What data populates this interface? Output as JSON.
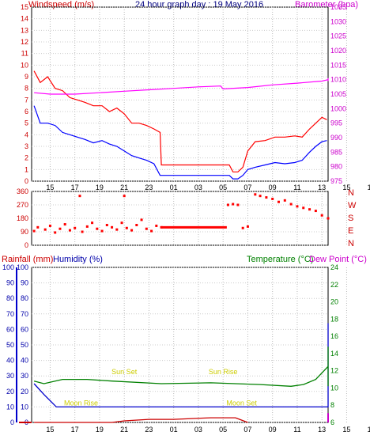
{
  "title": "24 hour graph day : 19 May 2016",
  "chart_data": [
    {
      "type": "line",
      "left_label": "Windspeed (m/s)",
      "right_label": "Barometer (hpa)",
      "ylim_left": [
        0,
        15
      ],
      "ylim_right": [
        975,
        1035
      ],
      "x_hours_from": 13.5,
      "x_hours_to": 37.5,
      "x_ticks": [
        "15",
        "17",
        "19",
        "21",
        "23",
        "01",
        "03",
        "05",
        "07",
        "09",
        "11",
        "13",
        "15",
        "17",
        "19",
        "21",
        "23"
      ],
      "y_ticks_left": [
        "15",
        "14",
        "13",
        "12",
        "11",
        "10",
        "9",
        "8",
        "7",
        "6",
        "5",
        "4",
        "3",
        "2",
        "1",
        "0"
      ],
      "y_ticks_right": [
        "1035",
        "1030",
        "1025",
        "1020",
        "1015",
        "1010",
        "1005",
        "1000",
        "995",
        "990",
        "985",
        "980",
        "975"
      ],
      "series": [
        {
          "name": "Windspeed",
          "color": "#ff0000",
          "points": [
            [
              13.7,
              9.5
            ],
            [
              14.2,
              8.5
            ],
            [
              14.8,
              9.0
            ],
            [
              15.4,
              8.0
            ],
            [
              16.0,
              7.8
            ],
            [
              16.6,
              7.2
            ],
            [
              17.2,
              7.0
            ],
            [
              17.8,
              6.8
            ],
            [
              18.5,
              6.5
            ],
            [
              19.2,
              6.5
            ],
            [
              19.8,
              6.0
            ],
            [
              20.4,
              6.3
            ],
            [
              21.0,
              5.8
            ],
            [
              21.6,
              5.0
            ],
            [
              22.2,
              5.0
            ],
            [
              22.8,
              4.8
            ],
            [
              23.4,
              4.5
            ],
            [
              23.9,
              4.2
            ],
            [
              24.0,
              1.4
            ],
            [
              26.0,
              1.4
            ],
            [
              27.0,
              1.4
            ],
            [
              28.8,
              1.4
            ],
            [
              29.5,
              1.4
            ],
            [
              29.8,
              0.8
            ],
            [
              30.2,
              0.8
            ],
            [
              30.6,
              1.2
            ],
            [
              31.0,
              2.6
            ],
            [
              31.6,
              3.4
            ],
            [
              32.4,
              3.5
            ],
            [
              33.2,
              3.8
            ],
            [
              34.0,
              3.8
            ],
            [
              34.8,
              3.9
            ],
            [
              35.4,
              3.8
            ],
            [
              36.0,
              4.5
            ],
            [
              36.5,
              5.0
            ],
            [
              37.0,
              5.5
            ],
            [
              37.4,
              5.3
            ]
          ]
        },
        {
          "name": "Gust",
          "color": "#0000ff",
          "points": [
            [
              13.7,
              6.5
            ],
            [
              14.2,
              5.0
            ],
            [
              14.8,
              5.0
            ],
            [
              15.4,
              4.8
            ],
            [
              16.0,
              4.2
            ],
            [
              16.6,
              4.0
            ],
            [
              17.2,
              3.8
            ],
            [
              17.8,
              3.6
            ],
            [
              18.5,
              3.3
            ],
            [
              19.2,
              3.5
            ],
            [
              19.8,
              3.2
            ],
            [
              20.4,
              3.0
            ],
            [
              21.0,
              2.6
            ],
            [
              21.6,
              2.2
            ],
            [
              22.2,
              2.0
            ],
            [
              22.8,
              1.8
            ],
            [
              23.4,
              1.5
            ],
            [
              23.9,
              0.5
            ],
            [
              24.0,
              0.5
            ],
            [
              29.5,
              0.5
            ],
            [
              29.8,
              0.2
            ],
            [
              30.2,
              0.2
            ],
            [
              30.6,
              0.5
            ],
            [
              31.0,
              1.0
            ],
            [
              31.6,
              1.2
            ],
            [
              32.4,
              1.4
            ],
            [
              33.2,
              1.6
            ],
            [
              34.0,
              1.5
            ],
            [
              34.8,
              1.6
            ],
            [
              35.4,
              1.8
            ],
            [
              36.0,
              2.5
            ],
            [
              36.5,
              3.0
            ],
            [
              37.0,
              3.4
            ],
            [
              37.4,
              3.5
            ]
          ]
        },
        {
          "name": "Barometer",
          "color": "#ff00ff",
          "points": [
            [
              13.7,
              1005.5
            ],
            [
              15.0,
              1005.0
            ],
            [
              17.0,
              1005.0
            ],
            [
              19.0,
              1005.5
            ],
            [
              21.0,
              1006.0
            ],
            [
              23.0,
              1006.5
            ],
            [
              25.0,
              1007.0
            ],
            [
              27.0,
              1007.5
            ],
            [
              28.8,
              1007.8
            ],
            [
              29.0,
              1006.8
            ],
            [
              31.0,
              1007.3
            ],
            [
              33.0,
              1008.2
            ],
            [
              35.0,
              1008.8
            ],
            [
              37.0,
              1009.5
            ],
            [
              38.5,
              1010.0
            ],
            [
              39.5,
              1010.5
            ],
            [
              41.0,
              1010.3
            ],
            [
              43.0,
              1010.0
            ],
            [
              45.0,
              1009.5
            ],
            [
              46.0,
              1009.5
            ]
          ]
        }
      ]
    },
    {
      "type": "scatter",
      "name": "Wind direction",
      "ylim": [
        0,
        360
      ],
      "y_ticks_left": [
        "360",
        "270",
        "180",
        "90",
        "0"
      ],
      "compass": [
        "N",
        "W",
        "S",
        "E",
        "N"
      ],
      "color": "#ff0000",
      "points": [
        [
          13.7,
          95
        ],
        [
          14.0,
          120
        ],
        [
          14.6,
          105
        ],
        [
          15.0,
          130
        ],
        [
          15.4,
          85
        ],
        [
          15.8,
          110
        ],
        [
          16.2,
          140
        ],
        [
          16.6,
          100
        ],
        [
          17.0,
          115
        ],
        [
          17.4,
          330
        ],
        [
          17.6,
          90
        ],
        [
          18.0,
          125
        ],
        [
          18.4,
          150
        ],
        [
          18.8,
          110
        ],
        [
          19.2,
          95
        ],
        [
          19.6,
          135
        ],
        [
          20.0,
          120
        ],
        [
          20.4,
          105
        ],
        [
          20.8,
          150
        ],
        [
          21.0,
          330
        ],
        [
          21.2,
          115
        ],
        [
          21.6,
          100
        ],
        [
          22.0,
          135
        ],
        [
          22.4,
          170
        ],
        [
          22.8,
          110
        ],
        [
          23.2,
          95
        ],
        [
          23.6,
          130
        ],
        [
          24.0,
          120
        ]
      ],
      "calm_from": 24.0,
      "calm_to": 29.3,
      "calm_value": 120,
      "points_after": [
        [
          29.4,
          270
        ],
        [
          29.8,
          275
        ],
        [
          30.2,
          270
        ],
        [
          30.6,
          115
        ],
        [
          31.0,
          125
        ],
        [
          31.6,
          340
        ],
        [
          32.0,
          330
        ],
        [
          32.5,
          320
        ],
        [
          33.0,
          310
        ],
        [
          33.5,
          290
        ],
        [
          34.0,
          300
        ],
        [
          34.5,
          275
        ],
        [
          35.0,
          260
        ],
        [
          35.5,
          250
        ],
        [
          36.0,
          240
        ],
        [
          36.5,
          230
        ],
        [
          37.0,
          200
        ],
        [
          37.5,
          180
        ],
        [
          38.0,
          160
        ],
        [
          38.5,
          175
        ],
        [
          39.0,
          150
        ],
        [
          39.5,
          160
        ],
        [
          40.0,
          145
        ],
        [
          40.5,
          130
        ],
        [
          41.0,
          120
        ],
        [
          41.5,
          115
        ],
        [
          42.0,
          110
        ],
        [
          42.5,
          105
        ],
        [
          43.0,
          100
        ],
        [
          44.0,
          105
        ],
        [
          45.0,
          100
        ],
        [
          46.0,
          100
        ]
      ]
    },
    {
      "type": "line",
      "left_label_1": "Rainfall (mm)",
      "left_label_2": "Humidity (%)",
      "right_label_1": "Temperature (°C)",
      "right_label_2": "Dew Point (°C)",
      "ylim_left": [
        0,
        100
      ],
      "ylim_right": [
        6,
        24
      ],
      "y_ticks_left": [
        "100",
        "90",
        "80",
        "70",
        "60",
        "50",
        "40",
        "30",
        "20",
        "10",
        "0"
      ],
      "y_ticks_right": [
        "24",
        "22",
        "20",
        "18",
        "16",
        "14",
        "12",
        "10",
        "8",
        "6"
      ],
      "series": [
        {
          "name": "Humidity",
          "color": "#0000cc",
          "points": [
            [
              13.7,
              25
            ],
            [
              14.5,
              18
            ],
            [
              15.5,
              10
            ],
            [
              20.0,
              10
            ],
            [
              25.0,
              10
            ],
            [
              30.0,
              10
            ],
            [
              35.0,
              10
            ],
            [
              38.0,
              10
            ],
            [
              39.5,
              12
            ],
            [
              40.2,
              40
            ],
            [
              40.8,
              55
            ],
            [
              41.5,
              62
            ],
            [
              42.5,
              63
            ],
            [
              43.0,
              64
            ],
            [
              43.5,
              62
            ],
            [
              44.0,
              58
            ],
            [
              44.5,
              48
            ],
            [
              45.0,
              35
            ],
            [
              45.5,
              20
            ],
            [
              45.9,
              10
            ]
          ]
        },
        {
          "name": "Temperature",
          "color": "#008000",
          "points": [
            [
              13.7,
              10.8
            ],
            [
              14.5,
              10.5
            ],
            [
              16.0,
              11.0
            ],
            [
              18.0,
              11.0
            ],
            [
              20.0,
              10.8
            ],
            [
              24.0,
              10.5
            ],
            [
              28.0,
              10.6
            ],
            [
              32.0,
              10.4
            ],
            [
              34.5,
              10.2
            ],
            [
              35.5,
              10.4
            ],
            [
              36.5,
              11.0
            ],
            [
              37.5,
              12.5
            ],
            [
              38.5,
              13.0
            ],
            [
              39.5,
              13.5
            ],
            [
              40.5,
              14.0
            ],
            [
              41.5,
              14.5
            ],
            [
              42.5,
              14.8
            ],
            [
              43.5,
              14.3
            ],
            [
              44.0,
              13.8
            ],
            [
              44.5,
              13.0
            ],
            [
              45.0,
              12.0
            ],
            [
              45.5,
              11.0
            ],
            [
              46.0,
              10.5
            ],
            [
              46.8,
              10.2
            ]
          ]
        },
        {
          "name": "Dew Point",
          "color": "#cc00cc",
          "points": [
            [
              41.0,
              0
            ],
            [
              41.5,
              2
            ],
            [
              42.0,
              4
            ],
            [
              42.4,
              6
            ],
            [
              42.6,
              3
            ],
            [
              42.8,
              0
            ]
          ]
        },
        {
          "name": "Rainfall",
          "color": "#cc0000",
          "points": [
            [
              13.7,
              0
            ],
            [
              20.0,
              0
            ],
            [
              21.0,
              1
            ],
            [
              23.0,
              2
            ],
            [
              25.0,
              2
            ],
            [
              28.0,
              3
            ],
            [
              30.0,
              3
            ],
            [
              31.0,
              0
            ]
          ]
        }
      ],
      "annotations": [
        {
          "text": "Sun Set",
          "hour": 21.0,
          "value": 30
        },
        {
          "text": "Sun Rise",
          "hour": 29.0,
          "value": 30
        },
        {
          "text": "Sun Set",
          "hour": 45.0,
          "value": 30
        },
        {
          "text": "Moon Rise",
          "hour": 17.5,
          "value": 10
        },
        {
          "text": "Moon Set",
          "hour": 30.5,
          "value": 10
        },
        {
          "text": "Moon Rise",
          "hour": 44.5,
          "value": 10
        }
      ]
    }
  ]
}
